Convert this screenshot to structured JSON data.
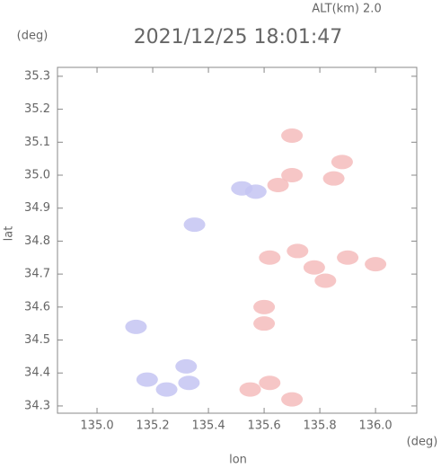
{
  "chart_data": {
    "type": "scatter",
    "title": "2021/12/25 18:01:47",
    "subtitle": "ALT(km) 2.0",
    "x_label": "lon",
    "y_label": "lat",
    "x_unit": "(deg)",
    "y_unit": "(deg)",
    "xlim": [
      134.858,
      136.148
    ],
    "ylim": [
      34.278,
      35.327
    ],
    "xticks": [
      {
        "value": 135,
        "label": "135.0"
      },
      135.2,
      135.4,
      135.6,
      135.8,
      {
        "value": 136,
        "label": "136.0"
      }
    ],
    "yticks": [
      34.3,
      34.4,
      34.5,
      34.6,
      34.7,
      34.8,
      34.9,
      {
        "value": 35,
        "label": "35.0"
      },
      35.1,
      35.2,
      35.3
    ],
    "series": [
      {
        "color": "#c4c4f2",
        "x": [
          135.52,
          135.57,
          135.35,
          135.14,
          135.32,
          135.25,
          135.18,
          135.33
        ],
        "values": [
          34.96,
          34.95,
          34.85,
          34.54,
          34.42,
          34.35,
          34.38,
          34.37
        ]
      },
      {
        "color": "#f4bcbc",
        "x": [
          135.65,
          135.7,
          135.85,
          135.88,
          135.7,
          135.62,
          135.72,
          135.78,
          135.9,
          136.0,
          135.6,
          135.7,
          135.62,
          135.55,
          135.6,
          135.82
        ],
        "values": [
          34.97,
          35.0,
          34.99,
          35.04,
          35.12,
          34.75,
          34.77,
          34.72,
          34.75,
          34.73,
          34.6,
          34.32,
          34.37,
          34.35,
          34.55,
          34.68
        ]
      }
    ]
  }
}
